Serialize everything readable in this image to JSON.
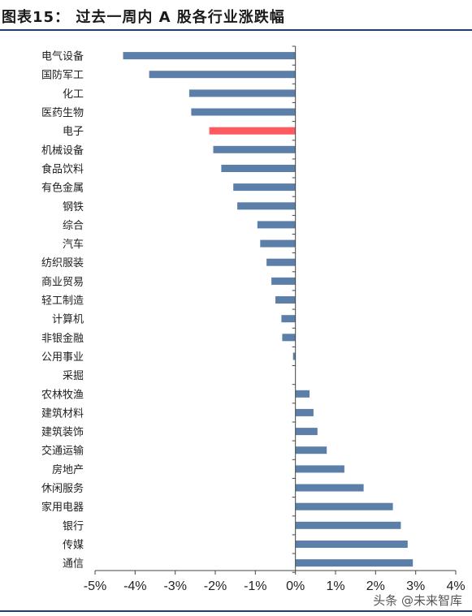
{
  "title": "图表15： 过去一周内 A 股各行业涨跌幅",
  "watermark": "头条 @未来智库",
  "colors": {
    "bar_default": "#5b7fa8",
    "bar_highlight": "#ff5a5f",
    "axis": "#444444",
    "rule": "#1f3f6b"
  },
  "chart_data": {
    "type": "bar",
    "orientation": "horizontal",
    "xlim": [
      -5,
      4
    ],
    "xticks": [
      -5,
      -4,
      -3,
      -2,
      -1,
      0,
      1,
      2,
      3,
      4
    ],
    "xtick_labels": [
      "-5%",
      "-4%",
      "-3%",
      "-2%",
      "-1%",
      "0%",
      "1%",
      "2%",
      "3%",
      "4%"
    ],
    "grid": false,
    "legend": "none",
    "highlight_category": "电子",
    "categories": [
      "电气设备",
      "国防军工",
      "化工",
      "医药生物",
      "电子",
      "机械设备",
      "食品饮料",
      "有色金属",
      "钢铁",
      "综合",
      "汽车",
      "纺织服装",
      "商业贸易",
      "轻工制造",
      "计算机",
      "非银金融",
      "公用事业",
      "采掘",
      "农林牧渔",
      "建筑材料",
      "建筑装饰",
      "交通运输",
      "房地产",
      "休闲服务",
      "家用电器",
      "银行",
      "传媒",
      "通信"
    ],
    "values": [
      -4.3,
      -3.65,
      -2.65,
      -2.6,
      -2.15,
      -2.05,
      -1.85,
      -1.55,
      -1.45,
      -0.95,
      -0.88,
      -0.72,
      -0.6,
      -0.5,
      -0.35,
      -0.33,
      -0.06,
      0.0,
      0.35,
      0.45,
      0.55,
      0.78,
      1.22,
      1.7,
      2.43,
      2.63,
      2.8,
      2.93
    ]
  }
}
